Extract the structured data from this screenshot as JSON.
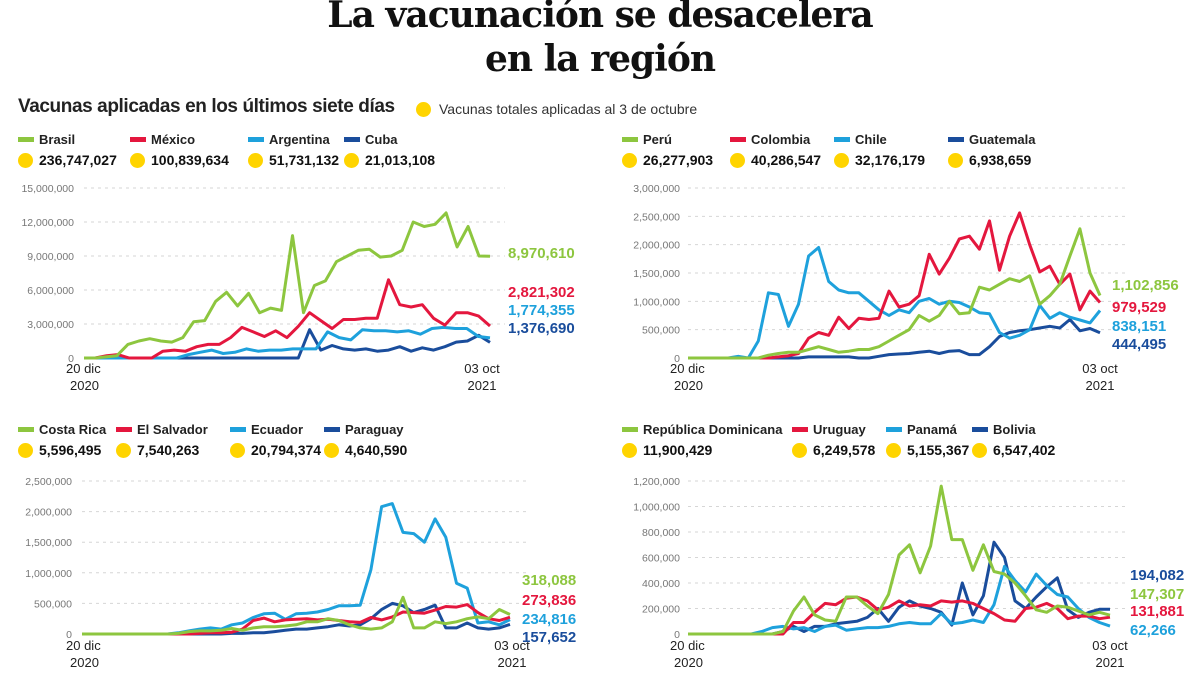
{
  "title": {
    "line1": "La vacunación se desacelera",
    "line2": "en la región"
  },
  "subtitle": "Vacunas aplicadas en los últimos siete días",
  "note": "Vacunas totales aplicadas al 3 de octubre",
  "colors": {
    "green": "#8dc63f",
    "red": "#e4173e",
    "lightblue": "#1ea1dc",
    "darkblue": "#1a4d9c",
    "yellow": "#ffd400"
  },
  "chart_data": [
    {
      "type": "line",
      "title": "",
      "x_start": [
        "20 dic",
        "2020"
      ],
      "x_end": [
        "03 oct",
        "2021"
      ],
      "ylim": [
        0,
        15000000
      ],
      "yticks": [
        "0",
        "3,000,000",
        "6,000,000",
        "9,000,000",
        "12,000,000",
        "15,000,000"
      ],
      "ytick_values": [
        0,
        3000000,
        6000000,
        9000000,
        12000000,
        15000000
      ],
      "grid": true,
      "series": [
        {
          "name": "Brasil",
          "color": "green",
          "total": "236,747,027",
          "end_label": "8,970,610",
          "values": [
            0,
            0,
            100000,
            200000,
            1200000,
            1500000,
            1700000,
            1500000,
            1400000,
            1800000,
            3200000,
            3300000,
            5000000,
            5800000,
            4600000,
            5700000,
            4000000,
            4400000,
            4200000,
            10800000,
            4000000,
            6400000,
            6800000,
            8500000,
            9000000,
            9500000,
            9600000,
            8900000,
            9000000,
            9500000,
            12000000,
            11600000,
            11800000,
            12800000,
            9800000,
            11600000,
            9000000,
            8970610
          ]
        },
        {
          "name": "México",
          "color": "red",
          "total": "100,839,634",
          "end_label": "2,821,302",
          "values": [
            0,
            0,
            200000,
            300000,
            0,
            0,
            0,
            600000,
            700000,
            600000,
            1000000,
            1200000,
            1200000,
            1800000,
            2700000,
            2300000,
            1900000,
            2400000,
            1800000,
            2800000,
            4000000,
            3300000,
            2600000,
            3400000,
            3400000,
            3500000,
            3500000,
            6900000,
            4700000,
            4500000,
            4700000,
            3500000,
            2900000,
            4000000,
            4000000,
            3700000,
            2821302
          ]
        },
        {
          "name": "Argentina",
          "color": "lightblue",
          "total": "51,731,132",
          "end_label": "1,774,355",
          "values": [
            0,
            0,
            0,
            0,
            0,
            0,
            0,
            0,
            0,
            300000,
            500000,
            700000,
            400000,
            500000,
            800000,
            600000,
            700000,
            700000,
            800000,
            800000,
            800000,
            2300000,
            1800000,
            1600000,
            2500000,
            2400000,
            2400000,
            2300000,
            2400000,
            2100000,
            2600000,
            2700000,
            2600000,
            2600000,
            1900000,
            1774355
          ]
        },
        {
          "name": "Cuba",
          "color": "darkblue",
          "total": "21,013,108",
          "end_label": "1,376,690",
          "values": [
            0,
            0,
            0,
            0,
            0,
            0,
            0,
            0,
            0,
            0,
            0,
            0,
            0,
            0,
            0,
            0,
            0,
            0,
            0,
            0,
            2500000,
            700000,
            1100000,
            800000,
            700000,
            800000,
            600000,
            700000,
            1000000,
            600000,
            900000,
            700000,
            1000000,
            1400000,
            1500000,
            2000000,
            1376690
          ]
        }
      ]
    },
    {
      "type": "line",
      "x_start": [
        "20 dic",
        "2020"
      ],
      "x_end": [
        "03 oct",
        "2021"
      ],
      "ylim": [
        0,
        3000000
      ],
      "yticks": [
        "0",
        "500,000",
        "1,000,000",
        "1,500,000",
        "2,000,000",
        "2,500,000",
        "3,000,000"
      ],
      "ytick_values": [
        0,
        500000,
        1000000,
        1500000,
        2000000,
        2500000,
        3000000
      ],
      "grid": true,
      "series": [
        {
          "name": "Perú",
          "color": "green",
          "total": "26,277,903",
          "end_label": "1,102,856",
          "values": [
            0,
            0,
            0,
            0,
            0,
            0,
            0,
            0,
            50000,
            80000,
            100000,
            100000,
            150000,
            200000,
            150000,
            100000,
            120000,
            150000,
            150000,
            200000,
            300000,
            400000,
            500000,
            750000,
            650000,
            750000,
            1000000,
            780000,
            800000,
            1250000,
            1200000,
            1300000,
            1400000,
            1350000,
            1450000,
            950000,
            1100000,
            1300000,
            1800000,
            2280000,
            1500000,
            1102856
          ]
        },
        {
          "name": "Colombia",
          "color": "red",
          "total": "40,286,547",
          "end_label": "979,529",
          "values": [
            0,
            0,
            0,
            0,
            0,
            0,
            0,
            0,
            0,
            20000,
            40000,
            80000,
            350000,
            450000,
            400000,
            720000,
            520000,
            700000,
            680000,
            700000,
            1180000,
            900000,
            950000,
            1100000,
            1830000,
            1480000,
            1760000,
            2100000,
            2150000,
            1920000,
            2420000,
            1550000,
            2150000,
            2560000,
            2000000,
            1520000,
            1620000,
            1300000,
            1480000,
            850000,
            1180000,
            979529
          ]
        },
        {
          "name": "Chile",
          "color": "lightblue",
          "total": "32,176,179",
          "end_label": "838,151",
          "values": [
            0,
            0,
            0,
            0,
            0,
            30000,
            0,
            300000,
            1150000,
            1120000,
            560000,
            950000,
            1800000,
            1950000,
            1350000,
            1200000,
            1150000,
            1150000,
            1000000,
            850000,
            750000,
            850000,
            800000,
            1000000,
            1050000,
            950000,
            1000000,
            980000,
            900000,
            800000,
            780000,
            450000,
            350000,
            400000,
            500000,
            930000,
            700000,
            800000,
            720000,
            670000,
            620000,
            838151
          ]
        },
        {
          "name": "Guatemala",
          "color": "darkblue",
          "total": "6,938,659",
          "end_label": "444,495",
          "values": [
            0,
            0,
            0,
            0,
            0,
            0,
            0,
            0,
            0,
            0,
            0,
            0,
            20000,
            20000,
            20000,
            20000,
            20000,
            0,
            0,
            30000,
            60000,
            70000,
            80000,
            100000,
            120000,
            80000,
            120000,
            130000,
            60000,
            60000,
            200000,
            380000,
            450000,
            480000,
            500000,
            530000,
            560000,
            530000,
            680000,
            480000,
            520000,
            444495
          ]
        }
      ]
    },
    {
      "type": "line",
      "x_start": [
        "20 dic",
        "2020"
      ],
      "x_end": [
        "03 oct",
        "2021"
      ],
      "ylim": [
        0,
        2500000
      ],
      "yticks": [
        "0",
        "500,000",
        "1,000,000",
        "1,500,000",
        "2,000,000",
        "2,500,000"
      ],
      "ytick_values": [
        0,
        500000,
        1000000,
        1500000,
        2000000,
        2500000
      ],
      "grid": true,
      "series": [
        {
          "name": "Costa Rica",
          "color": "green",
          "total": "5,596,495",
          "end_label": "318,088",
          "values": [
            0,
            0,
            0,
            0,
            0,
            0,
            0,
            0,
            0,
            10000,
            40000,
            50000,
            50000,
            60000,
            90000,
            60000,
            100000,
            120000,
            120000,
            130000,
            150000,
            200000,
            200000,
            250000,
            220000,
            150000,
            100000,
            80000,
            100000,
            200000,
            600000,
            100000,
            100000,
            200000,
            170000,
            200000,
            250000,
            280000,
            250000,
            400000,
            318088
          ]
        },
        {
          "name": "El Salvador",
          "color": "red",
          "total": "7,540,263",
          "end_label": "273,836",
          "values": [
            0,
            0,
            0,
            0,
            0,
            0,
            0,
            0,
            0,
            0,
            0,
            10000,
            20000,
            20000,
            30000,
            80000,
            220000,
            260000,
            200000,
            230000,
            240000,
            250000,
            230000,
            240000,
            220000,
            200000,
            190000,
            270000,
            230000,
            280000,
            360000,
            350000,
            340000,
            390000,
            450000,
            440000,
            480000,
            350000,
            250000,
            220000,
            273836
          ]
        },
        {
          "name": "Ecuador",
          "color": "lightblue",
          "total": "20,794,374",
          "end_label": "234,816",
          "values": [
            0,
            0,
            0,
            0,
            0,
            0,
            0,
            0,
            0,
            20000,
            50000,
            80000,
            100000,
            80000,
            150000,
            180000,
            270000,
            330000,
            340000,
            240000,
            330000,
            340000,
            360000,
            400000,
            460000,
            460000,
            470000,
            1050000,
            2080000,
            2130000,
            1660000,
            1640000,
            1500000,
            1880000,
            1580000,
            830000,
            750000,
            180000,
            200000,
            150000,
            234816
          ]
        },
        {
          "name": "Paraguay",
          "color": "darkblue",
          "total": "4,640,590",
          "end_label": "157,652",
          "values": [
            0,
            0,
            0,
            0,
            0,
            0,
            0,
            0,
            0,
            0,
            0,
            0,
            0,
            0,
            10000,
            10000,
            20000,
            20000,
            40000,
            60000,
            80000,
            80000,
            100000,
            120000,
            150000,
            130000,
            150000,
            250000,
            400000,
            500000,
            460000,
            350000,
            400000,
            470000,
            100000,
            100000,
            180000,
            100000,
            80000,
            100000,
            157652
          ]
        }
      ]
    },
    {
      "type": "line",
      "x_start": [
        "20 dic",
        "2020"
      ],
      "x_end": [
        "03 oct",
        "2021"
      ],
      "ylim": [
        0,
        1200000
      ],
      "yticks": [
        "0",
        "200,000",
        "400,000",
        "600,000",
        "800,000",
        "1,000,000",
        "1,200,000"
      ],
      "ytick_values": [
        0,
        200000,
        400000,
        600000,
        800000,
        1000000,
        1200000
      ],
      "grid": true,
      "series": [
        {
          "name": "República Dominicana",
          "color": "green",
          "total": "11,900,429",
          "end_label": "147,307",
          "values": [
            0,
            0,
            0,
            0,
            0,
            0,
            0,
            0,
            0,
            20000,
            180000,
            290000,
            150000,
            110000,
            100000,
            290000,
            290000,
            220000,
            160000,
            310000,
            620000,
            700000,
            480000,
            690000,
            1160000,
            740000,
            740000,
            500000,
            700000,
            490000,
            470000,
            400000,
            300000,
            190000,
            170000,
            220000,
            210000,
            180000,
            150000,
            170000,
            147307
          ]
        },
        {
          "name": "Uruguay",
          "color": "red",
          "total": "6,249,578",
          "end_label": "131,881",
          "values": [
            0,
            0,
            0,
            0,
            0,
            0,
            0,
            0,
            0,
            0,
            90000,
            90000,
            170000,
            240000,
            230000,
            280000,
            290000,
            260000,
            190000,
            210000,
            260000,
            220000,
            230000,
            220000,
            260000,
            250000,
            260000,
            240000,
            200000,
            160000,
            110000,
            100000,
            200000,
            210000,
            240000,
            200000,
            120000,
            140000,
            140000,
            120000,
            131881
          ]
        },
        {
          "name": "Panamá",
          "color": "lightblue",
          "total": "5,155,367",
          "end_label": "62,266",
          "values": [
            0,
            0,
            0,
            0,
            0,
            0,
            0,
            20000,
            50000,
            60000,
            40000,
            50000,
            20000,
            60000,
            70000,
            30000,
            40000,
            50000,
            50000,
            60000,
            80000,
            90000,
            80000,
            80000,
            160000,
            80000,
            90000,
            110000,
            90000,
            230000,
            530000,
            420000,
            330000,
            470000,
            380000,
            310000,
            290000,
            200000,
            130000,
            90000,
            62266
          ]
        },
        {
          "name": "Bolivia",
          "color": "darkblue",
          "total": "6,547,402",
          "end_label": "194,082",
          "values": [
            0,
            0,
            0,
            0,
            0,
            0,
            0,
            0,
            0,
            20000,
            60000,
            20000,
            60000,
            60000,
            80000,
            90000,
            100000,
            130000,
            200000,
            100000,
            210000,
            260000,
            220000,
            200000,
            170000,
            70000,
            400000,
            150000,
            300000,
            720000,
            600000,
            260000,
            200000,
            290000,
            370000,
            440000,
            190000,
            130000,
            170000,
            194082,
            194082
          ]
        }
      ]
    }
  ]
}
